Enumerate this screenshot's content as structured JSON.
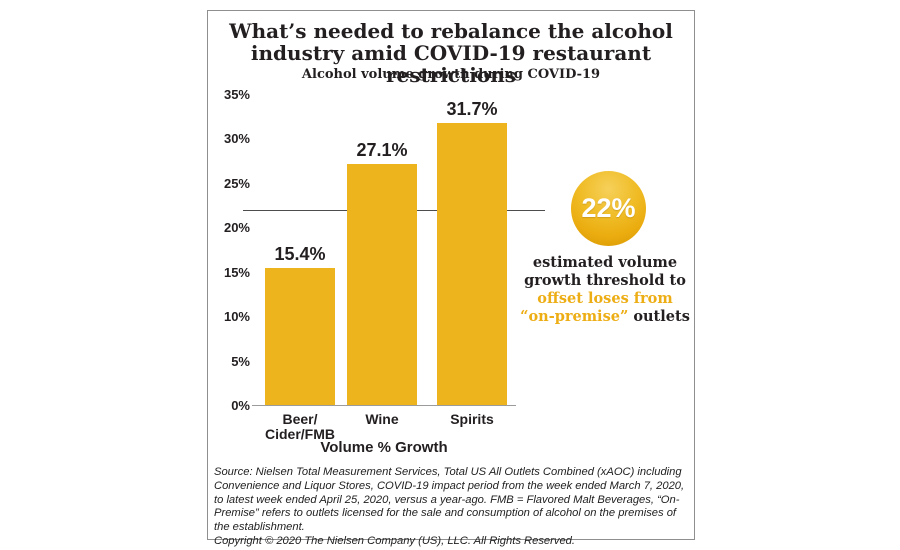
{
  "header": {
    "title_line1": "What’s needed to rebalance the alcohol",
    "title_line2": "industry amid COVID-19 restaurant restrictions",
    "subtitle": "Alcohol volume growth during COVID-19"
  },
  "chart_data": {
    "type": "bar",
    "title": "Alcohol volume growth during COVID-19",
    "categories": [
      "Beer/Cider/FMB",
      "Wine",
      "Spirits"
    ],
    "category_lines": [
      [
        "Beer/",
        "Cider/FMB"
      ],
      [
        "Wine"
      ],
      [
        "Spirits"
      ]
    ],
    "values": [
      15.4,
      27.1,
      31.7
    ],
    "value_labels": [
      "15.4%",
      "27.1%",
      "31.7%"
    ],
    "xlabel": "Volume % Growth",
    "ylabel": "",
    "ylim": [
      0,
      35
    ],
    "yticks": [
      0,
      5,
      10,
      15,
      20,
      25,
      30,
      35
    ],
    "ytick_labels": [
      "0%",
      "5%",
      "10%",
      "15%",
      "20%",
      "25%",
      "30%",
      "35%"
    ],
    "grid": false,
    "legend": false,
    "threshold_line": 22,
    "bar_color": "#EDB41E"
  },
  "annotation": {
    "badge": "22%",
    "line1": "estimated volume",
    "line2": "growth threshold to",
    "line3": "offset loses from",
    "line4_gold": "“on-premise”",
    "line4_dark": " outlets"
  },
  "footer": {
    "source": "Source: Nielsen Total Measurement Services, Total US All Outlets Combined (xAOC) including Convenience and Liquor Stores, COVID-19 impact period from the week ended March 7, 2020, to latest week ended April 25, 2020, versus a year-ago. FMB = Flavored Malt Beverages, “On-Premise” refers to outlets licensed for the sale and consumption of alcohol on the premises of the establishment.",
    "copyright": "Copyright © 2020 The Nielsen Company (US), LLC. All Rights Reserved."
  },
  "colors": {
    "gold": "#EDB41E",
    "gold_text": "#EDAD14",
    "ink": "#231F20",
    "threshold_line_color": "#4D4D4D",
    "baseline_color": "#9B9B9B",
    "frame_border": "#8F8F8F"
  }
}
